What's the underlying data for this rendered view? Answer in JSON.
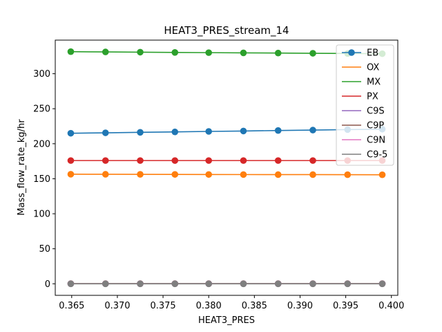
{
  "chart_data": {
    "type": "line",
    "title": "HEAT3_PRES_stream_14",
    "xlabel": "HEAT3_PRES",
    "ylabel": "Mass_flow_rate_kg/hr",
    "xlim": [
      0.3632,
      0.4007
    ],
    "ylim": [
      -16.5,
      348
    ],
    "xticks": [
      0.365,
      0.37,
      0.375,
      0.38,
      0.385,
      0.39,
      0.395,
      0.4
    ],
    "xtick_labels": [
      "0.365",
      "0.370",
      "0.375",
      "0.380",
      "0.385",
      "0.390",
      "0.395",
      "0.400"
    ],
    "yticks": [
      0,
      50,
      100,
      150,
      200,
      250,
      300
    ],
    "ytick_labels": [
      "0",
      "50",
      "100",
      "150",
      "200",
      "250",
      "300"
    ],
    "grid": false,
    "legend_position": "top-right",
    "x": [
      0.3649,
      0.3687,
      0.3725,
      0.3763,
      0.38,
      0.3838,
      0.3876,
      0.3914,
      0.3952,
      0.399
    ],
    "series": [
      {
        "name": "EB",
        "color": "#1f77b4",
        "values": [
          215.0,
          215.6,
          216.3,
          216.9,
          217.6,
          218.2,
          218.9,
          219.5,
          220.2,
          220.8
        ]
      },
      {
        "name": "OX",
        "color": "#ff7f0e",
        "values": [
          156.5,
          156.4,
          156.3,
          156.2,
          156.1,
          156.0,
          155.9,
          155.9,
          155.8,
          155.7
        ]
      },
      {
        "name": "MX",
        "color": "#2ca02c",
        "values": [
          331.5,
          331.1,
          330.8,
          330.4,
          330.1,
          329.8,
          329.5,
          329.2,
          328.9,
          328.6
        ]
      },
      {
        "name": "PX",
        "color": "#d62728",
        "values": [
          176.0,
          176.0,
          176.0,
          176.0,
          176.0,
          176.0,
          176.0,
          176.0,
          176.0,
          176.0
        ]
      },
      {
        "name": "C9S",
        "color": "#9467bd",
        "values": [
          0.1,
          0.1,
          0.1,
          0.1,
          0.1,
          0.1,
          0.1,
          0.1,
          0.1,
          0.1
        ]
      },
      {
        "name": "C9P",
        "color": "#8c564b",
        "values": [
          0.2,
          0.2,
          0.2,
          0.2,
          0.2,
          0.2,
          0.2,
          0.2,
          0.2,
          0.2
        ]
      },
      {
        "name": "C9N",
        "color": "#e377c2",
        "values": [
          0.05,
          0.05,
          0.05,
          0.05,
          0.05,
          0.05,
          0.05,
          0.05,
          0.05,
          0.05
        ]
      },
      {
        "name": "C9-5",
        "color": "#7f7f7f",
        "values": [
          0.0,
          0.0,
          0.0,
          0.0,
          0.0,
          0.0,
          0.0,
          0.0,
          0.0,
          0.0
        ]
      }
    ]
  }
}
